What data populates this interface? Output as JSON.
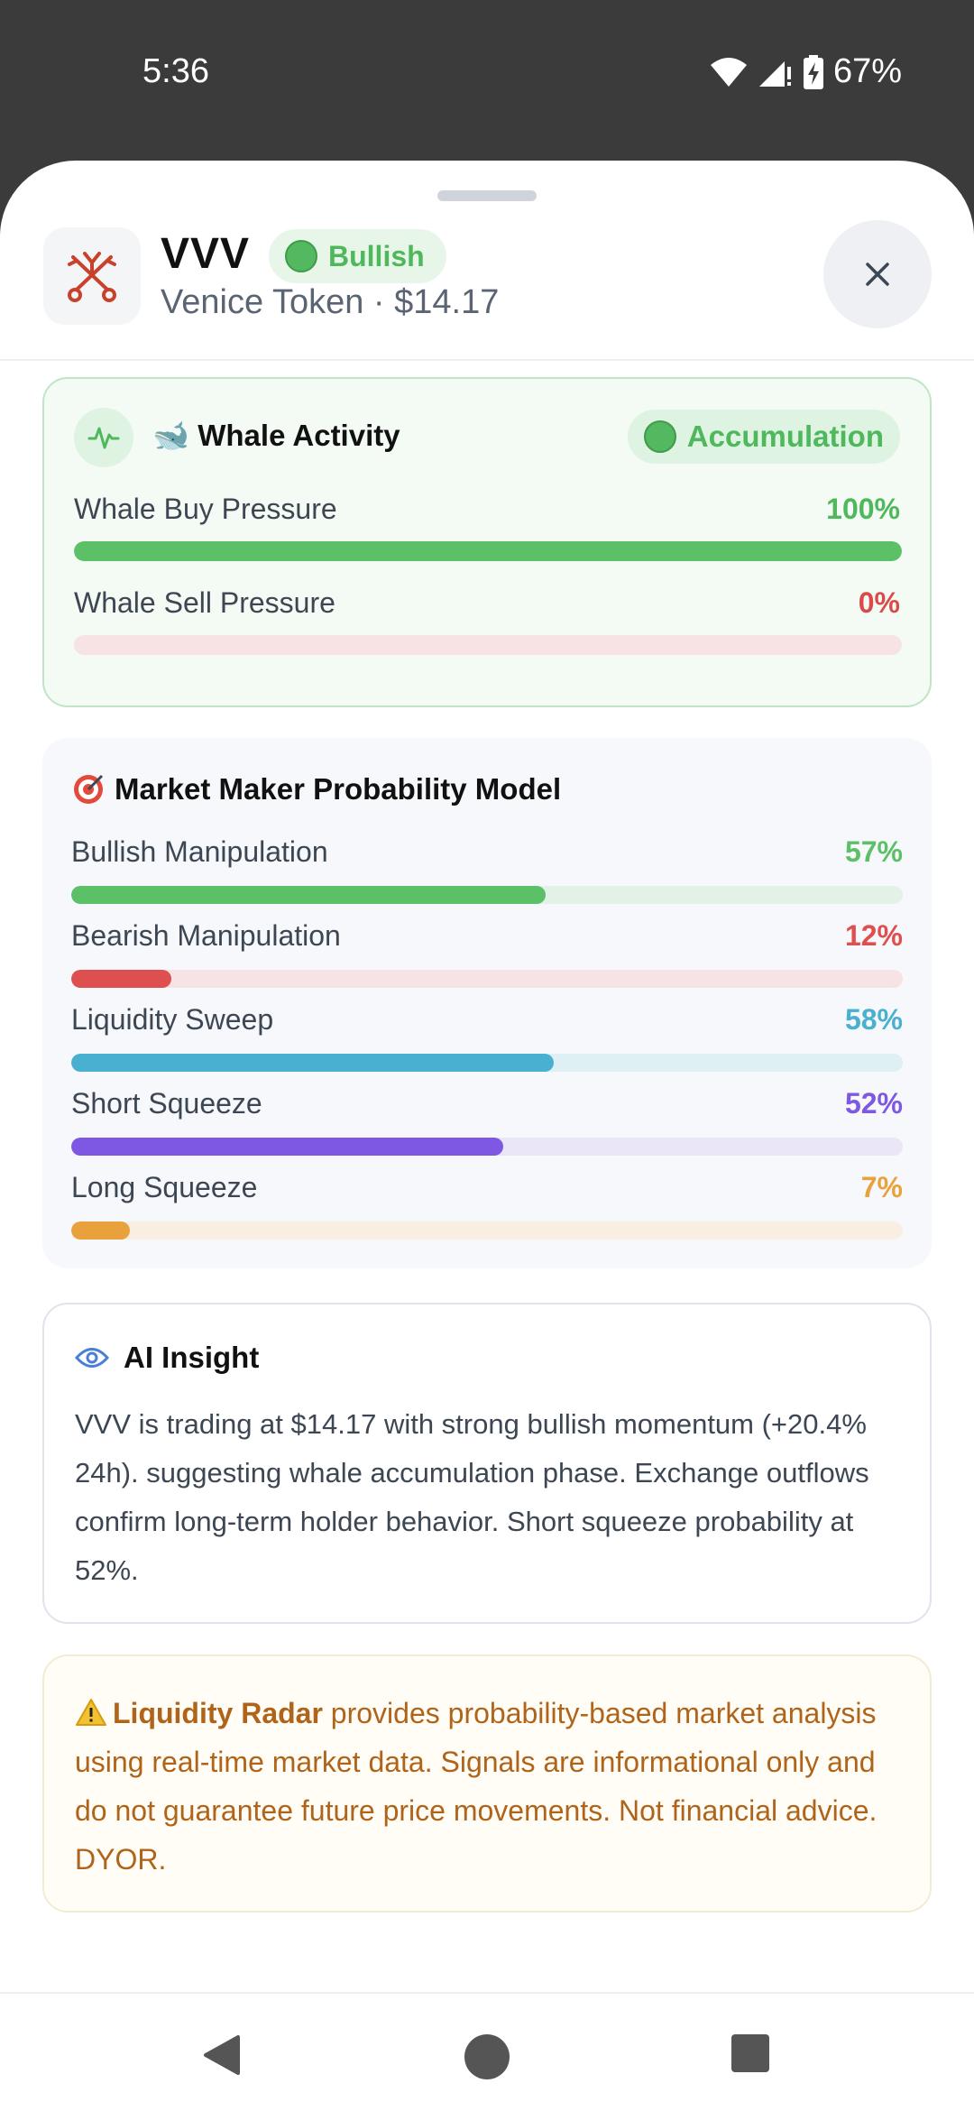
{
  "status_bar": {
    "time": "5:36",
    "battery": "67%"
  },
  "header": {
    "symbol": "VVV",
    "sentiment": "Bullish",
    "subtitle": "Venice Token · $14.17",
    "close_icon": "close-icon"
  },
  "whale": {
    "title": "🐋 Whale Activity",
    "badge": "Accumulation",
    "rows": [
      {
        "label": "Whale Buy Pressure",
        "value": "100%",
        "fraction": 1.0,
        "color": "#5cc166",
        "track": "#e3f3e5"
      },
      {
        "label": "Whale Sell Pressure",
        "value": "0%",
        "fraction": 0.0,
        "color": "#d94b4b",
        "track": "#f7e3e4"
      }
    ]
  },
  "mm_model": {
    "title": "Market Maker Probability Model",
    "rows": [
      {
        "label": "Bullish Manipulation",
        "value": "57%",
        "fraction": 0.57,
        "color": "#5cc166",
        "track": "#e3f1e6"
      },
      {
        "label": "Bearish Manipulation",
        "value": "12%",
        "fraction": 0.12,
        "color": "#de4f4f",
        "track": "#f7e3e5"
      },
      {
        "label": "Liquidity Sweep",
        "value": "58%",
        "fraction": 0.58,
        "color": "#4ab0d1",
        "track": "#dff0f5"
      },
      {
        "label": "Short Squeeze",
        "value": "52%",
        "fraction": 0.52,
        "color": "#7e58e2",
        "track": "#ebe6f7"
      },
      {
        "label": "Long Squeeze",
        "value": "7%",
        "fraction": 0.07,
        "color": "#e9a23b",
        "track": "#f8efe2"
      }
    ]
  },
  "ai_insight": {
    "title": "AI Insight",
    "text": "VVV is trading at $14.17 with strong bullish momentum (+20.4% 24h). suggesting whale accumulation phase. Exchange outflows confirm long-term holder behavior. Short squeeze probability at 52%."
  },
  "disclaimer": {
    "brand": "Liquidity Radar",
    "text": " provides probability-based market analysis using real-time market data. Signals are informational only and do not guarantee future price movements. Not financial advice. DYOR."
  },
  "colors": {
    "green": "#4fb85d",
    "red": "#d94b4b",
    "cyan": "#4ab0d1",
    "purple": "#7e58e2",
    "orange": "#e9a23b"
  }
}
